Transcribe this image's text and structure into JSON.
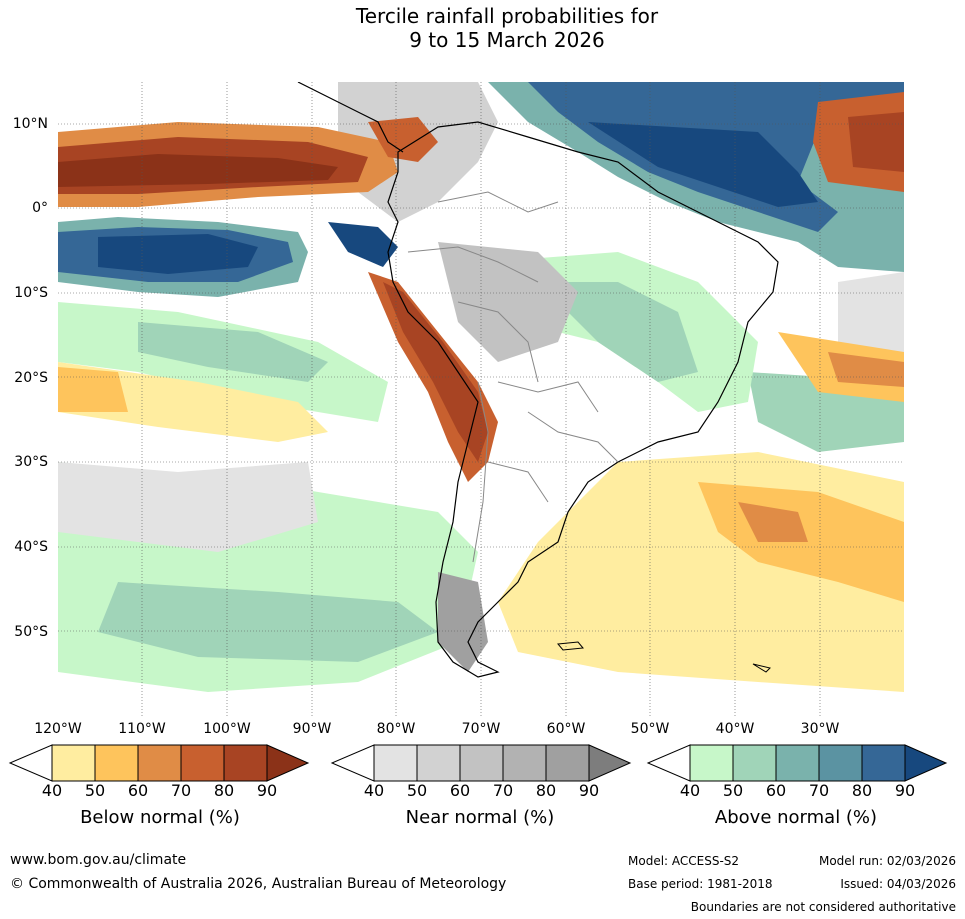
{
  "title": {
    "line1": "Tercile rainfall probabilities for",
    "line2": "9 to 15 March 2026"
  },
  "map": {
    "lat_labels": [
      "10°N",
      "0°",
      "10°S",
      "20°S",
      "30°S",
      "40°S",
      "50°S"
    ],
    "lon_labels": [
      "120°W",
      "110°W",
      "100°W",
      "90°W",
      "80°W",
      "70°W",
      "60°W",
      "50°W",
      "40°W",
      "30°W"
    ]
  },
  "legends": [
    {
      "caption": "Below normal (%)",
      "ticks": [
        "40",
        "50",
        "60",
        "70",
        "80",
        "90"
      ],
      "colors": [
        "#ffeda0",
        "#fec45c",
        "#e08c46",
        "#c8602f",
        "#a84423",
        "#8b3218"
      ]
    },
    {
      "caption": "Near normal (%)",
      "ticks": [
        "40",
        "50",
        "60",
        "70",
        "80",
        "90"
      ],
      "colors": [
        "#e3e3e3",
        "#d2d2d2",
        "#c2c2c2",
        "#b2b2b2",
        "#a0a0a0",
        "#7d7d7d"
      ]
    },
    {
      "caption": "Above normal (%)",
      "ticks": [
        "40",
        "50",
        "60",
        "70",
        "80",
        "90"
      ],
      "colors": [
        "#c7f7c9",
        "#a0d4b8",
        "#7ab2ac",
        "#5b93a2",
        "#356796",
        "#17487e"
      ]
    }
  ],
  "footer": {
    "url": "www.bom.gov.au/climate",
    "copyright": "© Commonwealth of Australia 2026, Australian Bureau of Meteorology",
    "model": "Model: ACCESS-S2",
    "base_period": "Base period: 1981-2018",
    "model_run": "Model run: 02/03/2026",
    "issued": "Issued: 04/03/2026",
    "disclaimer": "Boundaries are not considered authoritative"
  }
}
